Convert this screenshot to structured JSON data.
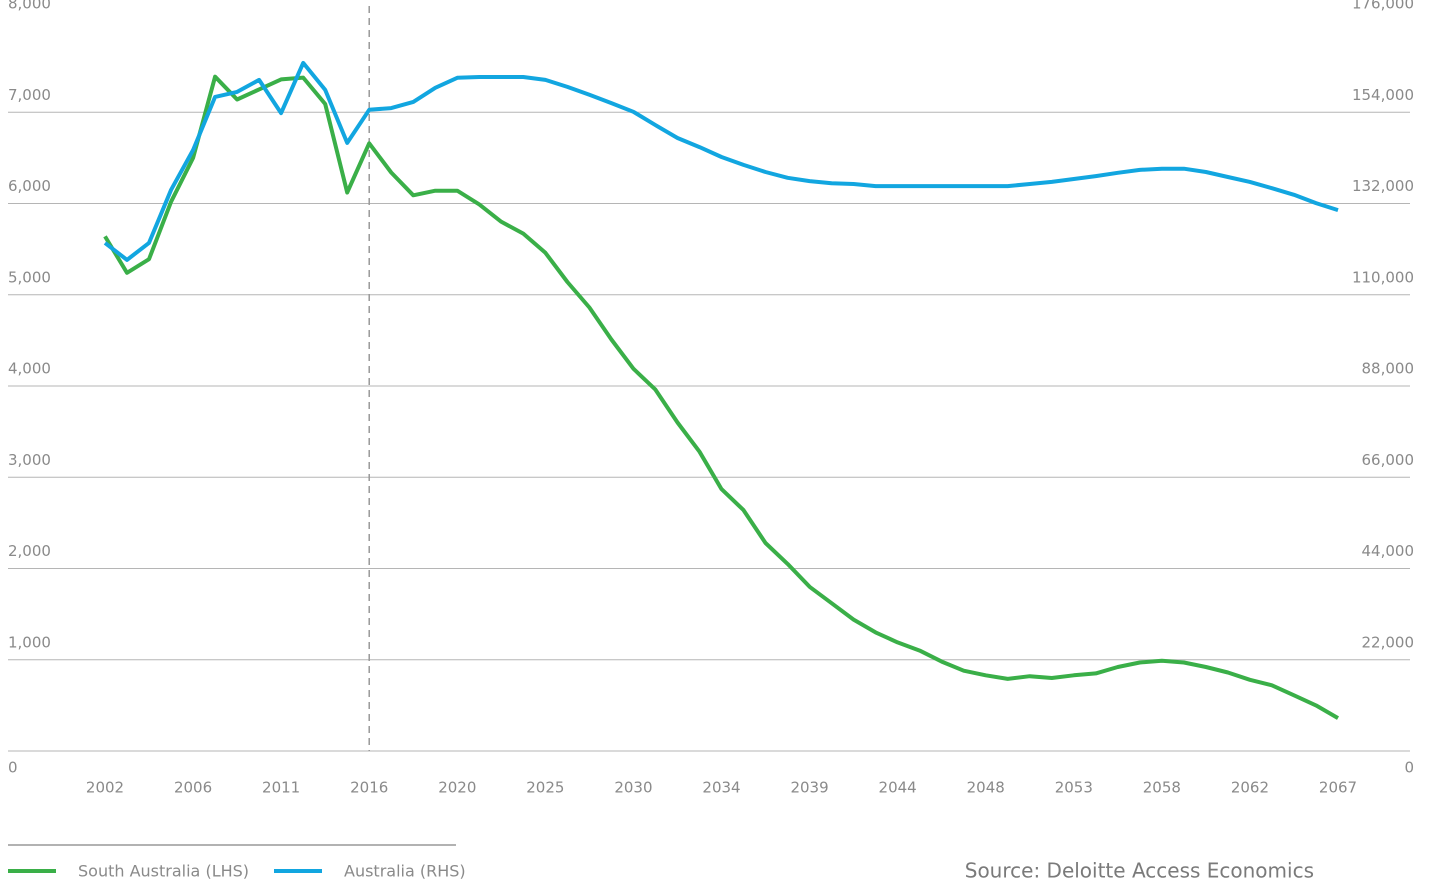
{
  "chart_data": {
    "type": "line",
    "categories": [
      "2002",
      null,
      null,
      null,
      "2006",
      null,
      null,
      null,
      "2011",
      null,
      null,
      null,
      "2016",
      null,
      null,
      null,
      "2020",
      null,
      null,
      null,
      "2025",
      null,
      null,
      null,
      "2030",
      null,
      null,
      null,
      "2034",
      null,
      null,
      null,
      "2039",
      null,
      null,
      null,
      "2044",
      null,
      null,
      null,
      "2048",
      null,
      null,
      null,
      "2053",
      null,
      null,
      null,
      "2058",
      null,
      null,
      null,
      "2062",
      null,
      null,
      null,
      "2067"
    ],
    "series": [
      {
        "name": "South Australia (LHS)",
        "color": "#3aaf48",
        "axis": "y",
        "values": [
          5640,
          5240,
          5390,
          6020,
          6500,
          7390,
          7140,
          7250,
          7360,
          7380,
          7090,
          6120,
          6660,
          6340,
          6090,
          6140,
          6140,
          5990,
          5800,
          5670,
          5460,
          5140,
          4860,
          4510,
          4190,
          3960,
          3600,
          3280,
          2870,
          2640,
          2280,
          2050,
          1800,
          1620,
          1440,
          1300,
          1190,
          1100,
          980,
          880,
          830,
          790,
          820,
          800,
          830,
          850,
          920,
          970,
          990,
          970,
          920,
          860,
          780,
          720,
          610,
          500,
          360
        ]
      },
      {
        "name": "Australia (RHS)",
        "color": "#12a6e0",
        "axis": "y2",
        "values": [
          122500,
          118400,
          122500,
          135300,
          144900,
          157700,
          158900,
          161800,
          153800,
          165900,
          159400,
          146600,
          154600,
          155000,
          156500,
          159900,
          162300,
          162500,
          162500,
          162500,
          161800,
          160100,
          158200,
          156200,
          154100,
          150900,
          147800,
          145600,
          143200,
          141300,
          139600,
          138200,
          137400,
          136900,
          136700,
          136200,
          136200,
          136200,
          136200,
          136200,
          136200,
          136200,
          136700,
          137200,
          137900,
          138600,
          139400,
          140100,
          140400,
          140400,
          139600,
          138400,
          137200,
          135700,
          134100,
          132100,
          130400
        ]
      }
    ],
    "ylim": [
      0,
      8000
    ],
    "yticks": [
      0,
      {
        "value": 1000,
        "label": "1,000"
      },
      {
        "value": 2000,
        "label": "2,000"
      },
      {
        "value": 3000,
        "label": "3,000"
      },
      {
        "value": 4000,
        "label": "4,000"
      },
      {
        "value": 5000,
        "label": "5,000"
      },
      {
        "value": 6000,
        "label": "6,000"
      },
      {
        "value": 7000,
        "label": "7,000"
      },
      {
        "value": 8000,
        "label": "8,000"
      }
    ],
    "y2lim": [
      0,
      176000
    ],
    "y2ticks": [
      0,
      {
        "value": 22000,
        "label": "22,000"
      },
      {
        "value": 44000,
        "label": "44,000"
      },
      {
        "value": 66000,
        "label": "66,000"
      },
      {
        "value": 88000,
        "label": "88,000"
      },
      {
        "value": 110000,
        "label": "110,000"
      },
      {
        "value": 132000,
        "label": "132,000"
      },
      {
        "value": 154000,
        "label": "154,000"
      },
      {
        "value": 176000,
        "label": "176,000"
      }
    ],
    "grid": true,
    "reference_line": "2016",
    "source": "Source: Deloitte Access Economics"
  }
}
